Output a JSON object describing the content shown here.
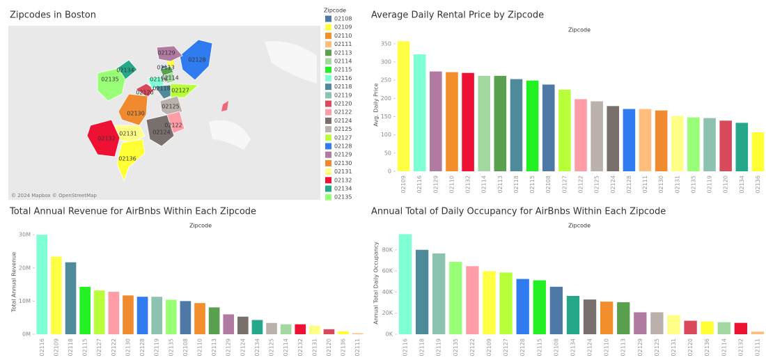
{
  "map": {
    "title": "Zipcodes in Boston",
    "attribution": "© 2024 Mapbox  © OpenStreetMap",
    "legend_title": "Zipcode",
    "legend": [
      {
        "label": "02108",
        "color": "#4e79a7"
      },
      {
        "label": "02109",
        "color": "#ffff44"
      },
      {
        "label": "02110",
        "color": "#f28e2b"
      },
      {
        "label": "02111",
        "color": "#ffbe7d"
      },
      {
        "label": "02113",
        "color": "#59a14f"
      },
      {
        "label": "02114",
        "color": "#a3d9a0"
      },
      {
        "label": "02115",
        "color": "#22f022"
      },
      {
        "label": "02116",
        "color": "#7fffd4"
      },
      {
        "label": "02118",
        "color": "#4f8a9b"
      },
      {
        "label": "02119",
        "color": "#8cc2b0"
      },
      {
        "label": "02120",
        "color": "#d84a5b"
      },
      {
        "label": "02122",
        "color": "#ff9da7"
      },
      {
        "label": "02124",
        "color": "#79706e"
      },
      {
        "label": "02125",
        "color": "#bab0ac"
      },
      {
        "label": "02127",
        "color": "#b8ff3a"
      },
      {
        "label": "02128",
        "color": "#2f7bef"
      },
      {
        "label": "02129",
        "color": "#b07aa1"
      },
      {
        "label": "02130",
        "color": "#ef8a2e"
      },
      {
        "label": "02131",
        "color": "#ffff88"
      },
      {
        "label": "02132",
        "color": "#ee1133"
      },
      {
        "label": "02134",
        "color": "#25a88a"
      },
      {
        "label": "02135",
        "color": "#99ff77"
      }
    ],
    "regions": [
      {
        "label": "02128",
        "color": "#2f7bef"
      },
      {
        "label": "02129",
        "color": "#b07aa1"
      },
      {
        "label": "02134",
        "color": "#25a88a"
      },
      {
        "label": "02135",
        "color": "#99ff77"
      },
      {
        "label": "02113",
        "color": "#59a14f"
      },
      {
        "label": "02120",
        "color": "#d84a5b"
      },
      {
        "label": "02116",
        "color": "#7fffd4"
      },
      {
        "label": "02114",
        "color": "#a3d9a0"
      },
      {
        "label": "02118",
        "color": "#4f8a9b"
      },
      {
        "label": "02127",
        "color": "#b8ff3a"
      },
      {
        "label": "02125",
        "color": "#bab0ac"
      },
      {
        "label": "02130",
        "color": "#ef8a2e"
      },
      {
        "label": "02122",
        "color": "#ff9da7"
      },
      {
        "label": "02124",
        "color": "#79706e"
      },
      {
        "label": "02131",
        "color": "#ffff88"
      },
      {
        "label": "02132",
        "color": "#ee1133"
      },
      {
        "label": "02136",
        "color": "#ffff33"
      }
    ]
  },
  "chart_data": [
    {
      "type": "bar",
      "title": "Average Daily Rental Price by Zipcode",
      "x_label": "Zipcode",
      "y_label": "Avg. Daily Price",
      "categories": [
        "02109",
        "02116",
        "02129",
        "02110",
        "02132",
        "02114",
        "02113",
        "02118",
        "02115",
        "02108",
        "02127",
        "02122",
        "02125",
        "02124",
        "02128",
        "02111",
        "02130",
        "02131",
        "02135",
        "02119",
        "02120",
        "02134",
        "02136"
      ],
      "values": [
        357,
        321,
        274,
        272,
        270,
        262,
        262,
        253,
        249,
        238,
        224,
        198,
        192,
        179,
        171,
        171,
        167,
        152,
        148,
        146,
        139,
        133,
        107
      ],
      "colors": [
        "#ffff44",
        "#7fffd4",
        "#b07aa1",
        "#f28e2b",
        "#ee1133",
        "#a3d9a0",
        "#59a14f",
        "#4f8a9b",
        "#22f022",
        "#4e79a7",
        "#b8ff3a",
        "#ff9da7",
        "#bab0ac",
        "#79706e",
        "#2f7bef",
        "#ffbe7d",
        "#ef8a2e",
        "#ffff88",
        "#99ff77",
        "#8cc2b0",
        "#d84a5b",
        "#25a88a",
        "#ffff33"
      ],
      "ylim": [
        0,
        365
      ],
      "yticks": [
        0,
        50,
        100,
        150,
        200,
        250,
        300,
        350
      ]
    },
    {
      "type": "bar",
      "title": "Total Annual Revenue for AirBnbs Within Each Zipcode",
      "x_label": "Zipcode",
      "y_label": "Total Annual Revenue",
      "categories": [
        "02116",
        "02109",
        "02118",
        "02115",
        "02127",
        "02122",
        "02130",
        "02128",
        "02119",
        "02135",
        "02108",
        "02110",
        "02113",
        "02129",
        "02124",
        "02134",
        "02125",
        "02114",
        "02132",
        "02131",
        "02120",
        "02136",
        "02111"
      ],
      "values": [
        30000000,
        23400000,
        21700000,
        14300000,
        13200000,
        12800000,
        11700000,
        11300000,
        11300000,
        10400000,
        10000000,
        9400000,
        8100000,
        6000000,
        5300000,
        4300000,
        3400000,
        3000000,
        3000000,
        2600000,
        1500000,
        900000,
        300000
      ],
      "colors": [
        "#7fffd4",
        "#ffff44",
        "#4f8a9b",
        "#22f022",
        "#b8ff3a",
        "#ff9da7",
        "#ef8a2e",
        "#2f7bef",
        "#8cc2b0",
        "#99ff77",
        "#4e79a7",
        "#f28e2b",
        "#59a14f",
        "#b07aa1",
        "#79706e",
        "#25a88a",
        "#bab0ac",
        "#a3d9a0",
        "#ee1133",
        "#ffff88",
        "#d84a5b",
        "#ffff33",
        "#ffbe7d"
      ],
      "ylim": [
        0,
        31500000
      ],
      "yticks": [
        {
          "value": 0,
          "label": "0M"
        },
        {
          "value": 10000000,
          "label": "10M"
        },
        {
          "value": 20000000,
          "label": "20M"
        },
        {
          "value": 30000000,
          "label": "30M"
        }
      ]
    },
    {
      "type": "bar",
      "title": "Annual Total of Daily Occupancy for AirBnbs Within Each Zipcode",
      "x_label": "Zipcode",
      "y_label": "Annual Total Daily Occupancy",
      "categories": [
        "02116",
        "02118",
        "02119",
        "02135",
        "02122",
        "02109",
        "02127",
        "02128",
        "02115",
        "02108",
        "02134",
        "02124",
        "02110",
        "02113",
        "02129",
        "02125",
        "02131",
        "02120",
        "02136",
        "02114",
        "02132",
        "02111"
      ],
      "values": [
        94800,
        80000,
        76600,
        68600,
        64500,
        59800,
        58500,
        52400,
        51100,
        45000,
        36300,
        32900,
        30900,
        30300,
        20800,
        20800,
        18200,
        12800,
        12100,
        11400,
        10800,
        2500
      ],
      "colors": [
        "#7fffd4",
        "#4f8a9b",
        "#8cc2b0",
        "#99ff77",
        "#ff9da7",
        "#ffff44",
        "#b8ff3a",
        "#2f7bef",
        "#22f022",
        "#4e79a7",
        "#25a88a",
        "#79706e",
        "#f28e2b",
        "#59a14f",
        "#b07aa1",
        "#bab0ac",
        "#ffff88",
        "#d84a5b",
        "#ffff33",
        "#a3d9a0",
        "#ee1133",
        "#ffbe7d"
      ],
      "ylim": [
        0,
        97000
      ],
      "yticks": [
        {
          "value": 0,
          "label": "0K"
        },
        {
          "value": 20000,
          "label": "20K"
        },
        {
          "value": 40000,
          "label": "40K"
        },
        {
          "value": 60000,
          "label": "60K"
        },
        {
          "value": 80000,
          "label": "80K"
        }
      ]
    }
  ]
}
